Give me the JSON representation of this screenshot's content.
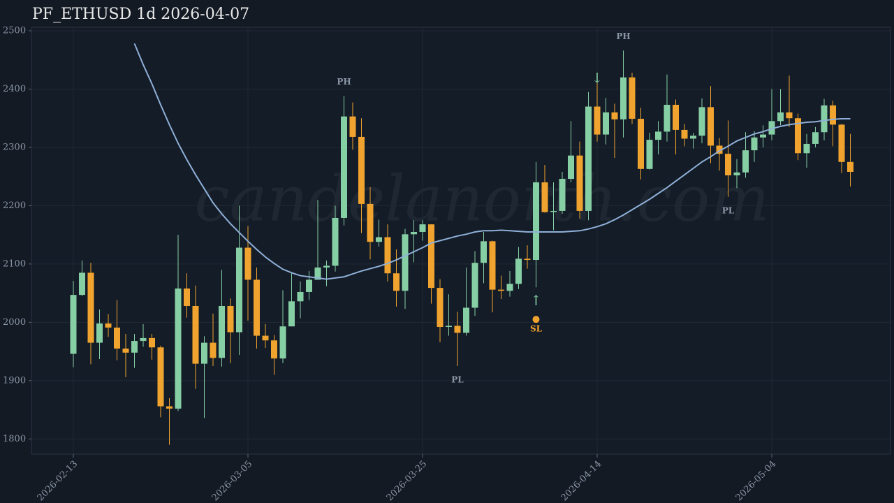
{
  "chart_data": {
    "type": "candlestick",
    "title": "PF_ETHUSD 1d 2026-04-07",
    "watermark": "candelanorth.com",
    "x": [
      "2026-02-13",
      "2026-02-14",
      "2026-02-15",
      "2026-02-16",
      "2026-02-17",
      "2026-02-18",
      "2026-02-19",
      "2026-02-20",
      "2026-02-21",
      "2026-02-22",
      "2026-02-23",
      "2026-02-24",
      "2026-02-25",
      "2026-02-26",
      "2026-02-27",
      "2026-02-28",
      "2026-03-01",
      "2026-03-02",
      "2026-03-03",
      "2026-03-04",
      "2026-03-05",
      "2026-03-06",
      "2026-03-07",
      "2026-03-08",
      "2026-03-09",
      "2026-03-10",
      "2026-03-11",
      "2026-03-12",
      "2026-03-13",
      "2026-03-14",
      "2026-03-15",
      "2026-03-16",
      "2026-03-17",
      "2026-03-18",
      "2026-03-19",
      "2026-03-20",
      "2026-03-21",
      "2026-03-22",
      "2026-03-23",
      "2026-03-24",
      "2026-03-25",
      "2026-03-26",
      "2026-03-27",
      "2026-03-28",
      "2026-03-29",
      "2026-03-30",
      "2026-03-31",
      "2026-04-01",
      "2026-04-02",
      "2026-04-03",
      "2026-04-04",
      "2026-04-05",
      "2026-04-06",
      "2026-04-07",
      "2026-04-08",
      "2026-04-09",
      "2026-04-10",
      "2026-04-11",
      "2026-04-12",
      "2026-04-13",
      "2026-04-14",
      "2026-04-15",
      "2026-04-16",
      "2026-04-17",
      "2026-04-18",
      "2026-04-19",
      "2026-04-20",
      "2026-04-21",
      "2026-04-22",
      "2026-04-23",
      "2026-04-24",
      "2026-04-25",
      "2026-04-26",
      "2026-04-27",
      "2026-04-28",
      "2026-04-29",
      "2026-04-30",
      "2026-05-01",
      "2026-05-02",
      "2026-05-03",
      "2026-05-04",
      "2026-05-05",
      "2026-05-06",
      "2026-05-07",
      "2026-05-08",
      "2026-05-09",
      "2026-05-10",
      "2026-05-11",
      "2026-05-12",
      "2026-05-13"
    ],
    "open": [
      1946,
      2047,
      2085,
      1965,
      1998,
      1991,
      1955,
      1948,
      1968,
      1973,
      1957,
      1856,
      1852,
      2058,
      2028,
      1929,
      1965,
      1939,
      2028,
      1983,
      2128,
      2073,
      1977,
      1969,
      1938,
      1993,
      2036,
      2052,
      2073,
      2094,
      2097,
      2179,
      2353,
      2318,
      2203,
      2138,
      2146,
      2084,
      2054,
      2151,
      2155,
      2168,
      2059,
      1992,
      1994,
      1982,
      2025,
      2102,
      2139,
      2056,
      2054,
      2066,
      2109,
      2107,
      2240,
      2190,
      2191,
      2246,
      2286,
      2191,
      2370,
      2322,
      2360,
      2348,
      2420,
      2349,
      2263,
      2313,
      2327,
      2373,
      2330,
      2315,
      2320,
      2369,
      2303,
      2289,
      2252,
      2257,
      2295,
      2317,
      2322,
      2345,
      2360,
      2350,
      2290,
      2306,
      2326,
      2372,
      2339,
      2275
    ],
    "high": [
      2071,
      2106,
      2102,
      2022,
      2014,
      2038,
      1980,
      1980,
      1997,
      1980,
      1960,
      1870,
      2150,
      2084,
      2063,
      1976,
      2015,
      2090,
      2041,
      2200,
      2165,
      2094,
      1997,
      1978,
      2055,
      2085,
      2070,
      2088,
      2210,
      2106,
      2200,
      2388,
      2377,
      2350,
      2232,
      2176,
      2168,
      2125,
      2160,
      2175,
      2175,
      2168,
      2074,
      2048,
      2018,
      2094,
      2122,
      2155,
      2140,
      2080,
      2088,
      2129,
      2132,
      2275,
      2270,
      2240,
      2258,
      2345,
      2310,
      2395,
      2410,
      2385,
      2375,
      2466,
      2428,
      2368,
      2325,
      2345,
      2425,
      2382,
      2340,
      2325,
      2384,
      2405,
      2316,
      2346,
      2280,
      2326,
      2328,
      2338,
      2400,
      2400,
      2423,
      2358,
      2323,
      2335,
      2383,
      2380,
      2340,
      2323
    ],
    "low": [
      1923,
      2045,
      1928,
      1937,
      1975,
      1935,
      1906,
      1922,
      1958,
      1936,
      1837,
      1790,
      1848,
      2008,
      1886,
      1836,
      1925,
      1924,
      1930,
      1944,
      2003,
      1955,
      1956,
      1910,
      1930,
      1996,
      2007,
      2038,
      2074,
      2062,
      2087,
      2166,
      2296,
      2153,
      2108,
      2130,
      2070,
      2027,
      2023,
      2103,
      2140,
      2032,
      1966,
      1977,
      1925,
      1977,
      2011,
      2067,
      2017,
      2040,
      2044,
      2057,
      2092,
      2060,
      2188,
      2158,
      2186,
      2240,
      2178,
      2175,
      2310,
      2305,
      2282,
      2317,
      2340,
      2245,
      2262,
      2288,
      2310,
      2288,
      2302,
      2298,
      2307,
      2273,
      2260,
      2215,
      2230,
      2248,
      2275,
      2300,
      2312,
      2338,
      2335,
      2278,
      2265,
      2300,
      2312,
      2302,
      2256,
      2233
    ],
    "close": [
      2047,
      2085,
      1965,
      1998,
      1991,
      1955,
      1948,
      1968,
      1973,
      1957,
      1856,
      1852,
      2058,
      2028,
      1929,
      1965,
      1939,
      2028,
      1983,
      2128,
      2073,
      1977,
      1969,
      1938,
      1993,
      2036,
      2052,
      2073,
      2094,
      2097,
      2179,
      2353,
      2318,
      2203,
      2138,
      2146,
      2084,
      2054,
      2151,
      2155,
      2168,
      2059,
      1992,
      1994,
      1982,
      2025,
      2102,
      2139,
      2056,
      2054,
      2066,
      2109,
      2107,
      2240,
      2189,
      2191,
      2246,
      2286,
      2191,
      2370,
      2322,
      2360,
      2348,
      2420,
      2349,
      2263,
      2313,
      2327,
      2373,
      2330,
      2315,
      2320,
      2369,
      2303,
      2289,
      2252,
      2257,
      2295,
      2317,
      2322,
      2345,
      2360,
      2350,
      2290,
      2306,
      2326,
      2372,
      2339,
      2275,
      2258
    ],
    "up_color": "#86cfa5",
    "down_color": "#f0a32e",
    "ma": {
      "color": "#8fb0d8",
      "values": [
        null,
        null,
        null,
        null,
        null,
        null,
        null,
        2478,
        2442,
        2409,
        2373,
        2339,
        2307,
        2279,
        2253,
        2229,
        2205,
        2186,
        2169,
        2154,
        2139,
        2125,
        2112,
        2101,
        2091,
        2085,
        2080,
        2078,
        2076,
        2074,
        2076,
        2078,
        2083,
        2088,
        2092,
        2096,
        2101,
        2107,
        2114,
        2121,
        2128,
        2136,
        2140,
        2144,
        2148,
        2151,
        2155,
        2157,
        2157,
        2158,
        2157,
        2156,
        2155,
        2155,
        2155,
        2155,
        2155,
        2156,
        2157,
        2160,
        2164,
        2169,
        2176,
        2184,
        2193,
        2202,
        2211,
        2221,
        2231,
        2242,
        2253,
        2264,
        2275,
        2284,
        2294,
        2302,
        2311,
        2317,
        2323,
        2327,
        2332,
        2336,
        2339,
        2341,
        2343,
        2344,
        2346,
        2348,
        2349,
        2349
      ]
    },
    "annotations": [
      {
        "x": "2026-03-16",
        "text": "PH",
        "position": "above"
      },
      {
        "x": "2026-04-17",
        "text": "PH",
        "position": "above"
      },
      {
        "x": "2026-03-29",
        "text": "PL",
        "position": "below"
      },
      {
        "x": "2026-04-29",
        "text": "PL",
        "position": "below"
      },
      {
        "x": "2026-04-14",
        "text": "↓",
        "position": "above"
      },
      {
        "x": "2026-04-07",
        "text": "↑",
        "position": "below"
      }
    ],
    "stop_loss": {
      "x": "2026-04-07",
      "value": 2005,
      "label": "SL",
      "color": "#f0a32e"
    },
    "ylim": [
      1774,
      2506
    ],
    "yticks": [
      1800,
      1900,
      2000,
      2100,
      2200,
      2300,
      2400,
      2500
    ],
    "xticks": [
      "2026-02-13",
      "2026-03-05",
      "2026-03-25",
      "2026-04-14",
      "2026-05-04"
    ],
    "grid": true
  }
}
